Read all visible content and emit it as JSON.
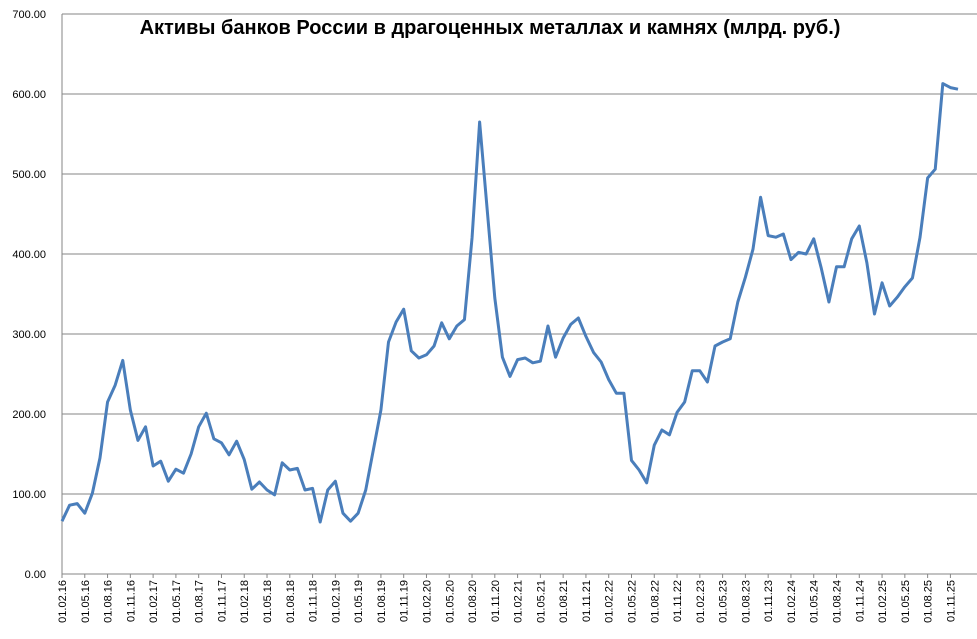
{
  "chart_data": {
    "type": "line",
    "title": "Активы банков России в драгоценных металлах и камнях (млрд. руб.)",
    "categories": [
      "01.02.16",
      null,
      null,
      "01.05.16",
      null,
      null,
      "01.08.16",
      null,
      null,
      "01.11.16",
      null,
      null,
      "01.02.17",
      null,
      null,
      "01.05.17",
      null,
      null,
      "01.08.17",
      null,
      null,
      "01.11.17",
      null,
      null,
      "01.02.18",
      null,
      null,
      "01.05.18",
      null,
      null,
      "01.08.18",
      null,
      null,
      "01.11.18",
      null,
      null,
      "01.02.19",
      null,
      null,
      "01.05.19",
      null,
      null,
      "01.08.19",
      null,
      null,
      "01.11.19",
      null,
      null,
      "01.02.20",
      null,
      null,
      "01.05.20",
      null,
      null,
      "01.08.20",
      null,
      null,
      "01.11.20",
      null,
      null,
      "01.02.21",
      null,
      null,
      "01.05.21",
      null,
      null,
      "01.08.21",
      null,
      null,
      "01.11.21",
      null,
      null,
      "01.02.22",
      null,
      null,
      "01.05.22",
      null,
      null,
      "01.08.22",
      null,
      null,
      "01.11.22",
      null,
      null,
      "01.02.23",
      null,
      null,
      "01.05.23",
      null,
      null,
      "01.08.23",
      null,
      null,
      "01.11.23",
      null,
      null,
      "01.02.24",
      null,
      null,
      "01.05.24",
      null,
      null,
      "01.08.24",
      null,
      null,
      "01.11.24",
      null,
      null,
      "01.02.25",
      null,
      null,
      "01.05.25",
      null,
      null,
      "01.08.25",
      null,
      null,
      "01.11.25",
      null
    ],
    "values": [
      66,
      86,
      88,
      76,
      101,
      145,
      215,
      236,
      267,
      205,
      167,
      184,
      135,
      141,
      116,
      131,
      126,
      150,
      184,
      201,
      169,
      164,
      149,
      166,
      143,
      106,
      115,
      105,
      99,
      139,
      130,
      132,
      105,
      107,
      65,
      105,
      116,
      76,
      66,
      76,
      105,
      155,
      205,
      290,
      315,
      331,
      279,
      270,
      274,
      285,
      314,
      294,
      310,
      318,
      420,
      565,
      455,
      345,
      271,
      247,
      268,
      270,
      264,
      266,
      310,
      271,
      295,
      312,
      320,
      297,
      277,
      265,
      243,
      226,
      226,
      142,
      130,
      114,
      161,
      180,
      174,
      202,
      215,
      254,
      254,
      240,
      285,
      290,
      294,
      340,
      371,
      406,
      471,
      423,
      421,
      425,
      393,
      402,
      400,
      419,
      382,
      340,
      384,
      384,
      419,
      435,
      389,
      325,
      364,
      335,
      346,
      359,
      370,
      421,
      495,
      506,
      613,
      608,
      606
    ],
    "color": "#4a7ebb",
    "ylim": [
      0,
      700
    ],
    "yticks": [
      {
        "value": 0,
        "label": "0.00"
      },
      {
        "value": 100,
        "label": "100.00"
      },
      {
        "value": 200,
        "label": "200.00"
      },
      {
        "value": 300,
        "label": "300.00"
      },
      {
        "value": 400,
        "label": "400.00"
      },
      {
        "value": 500,
        "label": "500.00"
      },
      {
        "value": 600,
        "label": "600.00"
      },
      {
        "value": 700,
        "label": "700.00"
      }
    ],
    "grid": true
  }
}
